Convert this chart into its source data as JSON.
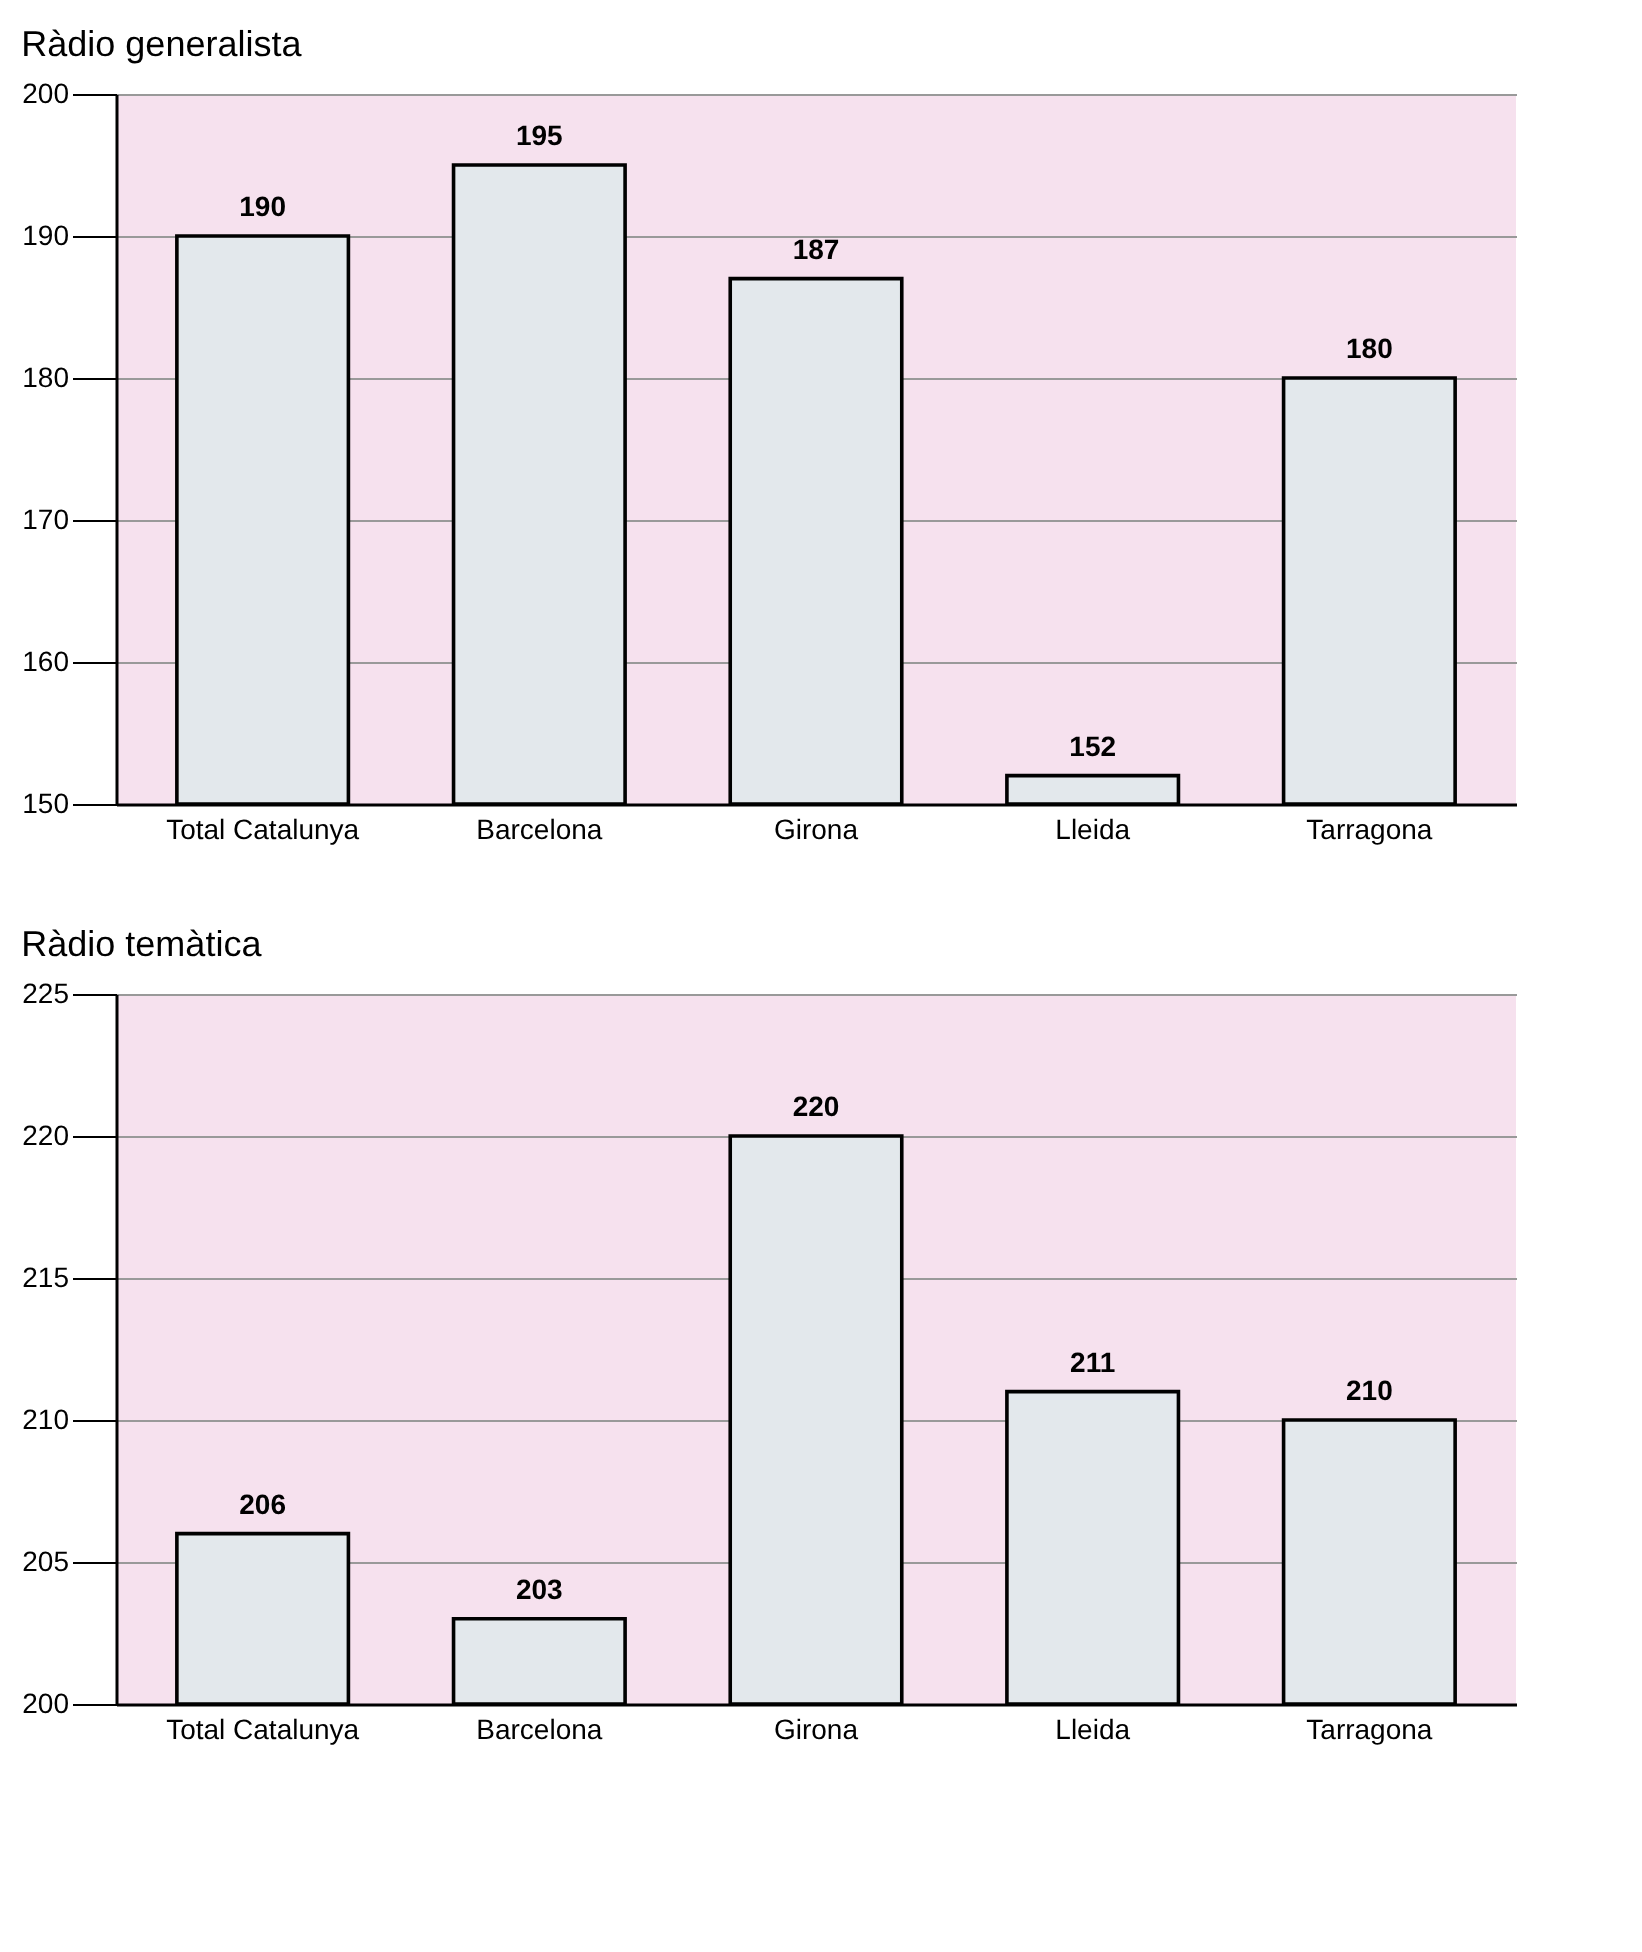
{
  "chart_data": [
    {
      "type": "bar",
      "title": "Ràdio generalista",
      "categories": [
        "Total Catalunya",
        "Barcelona",
        "Girona",
        "Lleida",
        "Tarragona"
      ],
      "values": [
        190,
        195,
        187,
        152,
        180
      ],
      "color": "#e3e8ec",
      "ylim": [
        150,
        200
      ],
      "yticks": [
        150,
        160,
        170,
        180,
        190,
        200
      ],
      "grid": "y",
      "data_labels": true
    },
    {
      "type": "bar",
      "title": "Ràdio temàtica",
      "categories": [
        "Total Catalunya",
        "Barcelona",
        "Girona",
        "Lleida",
        "Tarragona"
      ],
      "values": [
        206,
        203,
        220,
        211,
        210
      ],
      "color": "#e3e8ec",
      "ylim": [
        200,
        225
      ],
      "yticks": [
        200,
        205,
        210,
        215,
        220,
        225
      ],
      "grid": "y",
      "data_labels": true
    }
  ]
}
